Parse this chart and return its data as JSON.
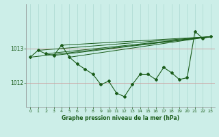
{
  "xlabel": "Graphe pression niveau de la mer (hPa)",
  "background_color": "#cceee8",
  "plot_bg_color": "#cceee8",
  "line_color": "#1a5c1a",
  "grid_color_v": "#aad8d0",
  "grid_color_h": "#cc9999",
  "tick_color": "#1a5c1a",
  "label_color": "#1a5c1a",
  "ylim": [
    1011.3,
    1014.3
  ],
  "xlim": [
    -0.5,
    23.5
  ],
  "yticks": [
    1012,
    1013
  ],
  "xticks": [
    0,
    1,
    2,
    3,
    4,
    5,
    6,
    7,
    8,
    9,
    10,
    11,
    12,
    13,
    14,
    15,
    16,
    17,
    18,
    19,
    20,
    21,
    22,
    23
  ],
  "measured": {
    "x": [
      0,
      1,
      2,
      3,
      4,
      5,
      6,
      7,
      8,
      9,
      10,
      11,
      12,
      13,
      14,
      15,
      16,
      17,
      18,
      19,
      20,
      21,
      22,
      23
    ],
    "y": [
      1012.75,
      1012.95,
      1012.85,
      1012.8,
      1013.1,
      1012.75,
      1012.55,
      1012.4,
      1012.25,
      1011.95,
      1012.05,
      1011.7,
      1011.6,
      1011.95,
      1012.25,
      1012.25,
      1012.1,
      1012.45,
      1012.3,
      1012.1,
      1012.15,
      1013.5,
      1013.3,
      1013.35
    ]
  },
  "forecast_lines": [
    {
      "x": [
        0,
        23
      ],
      "y": [
        1012.75,
        1013.35
      ]
    },
    {
      "x": [
        1,
        23
      ],
      "y": [
        1012.95,
        1013.35
      ]
    },
    {
      "x": [
        2,
        23
      ],
      "y": [
        1012.85,
        1013.35
      ]
    },
    {
      "x": [
        3,
        23
      ],
      "y": [
        1012.8,
        1013.35
      ]
    },
    {
      "x": [
        4,
        23
      ],
      "y": [
        1013.1,
        1013.35
      ]
    },
    {
      "x": [
        5,
        23
      ],
      "y": [
        1012.75,
        1013.35
      ]
    }
  ]
}
